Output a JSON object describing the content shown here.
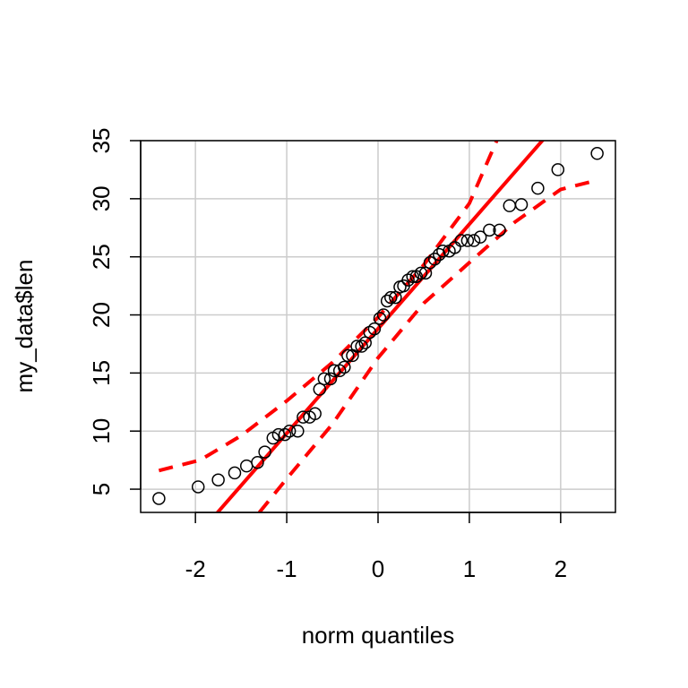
{
  "chart_data": {
    "type": "scatter",
    "title": "",
    "xlabel": "norm quantiles",
    "ylabel": "my_data$len",
    "xlim": [
      -2.6,
      2.6
    ],
    "ylim": [
      3.0,
      35.0
    ],
    "x_ticks": [
      -2,
      -1,
      0,
      1,
      2
    ],
    "x_tick_labels": [
      "-2",
      "-1",
      "0",
      "1",
      "2"
    ],
    "y_ticks": [
      5,
      10,
      15,
      20,
      25,
      30,
      35
    ],
    "y_tick_labels": [
      "5",
      "10",
      "15",
      "20",
      "25",
      "30",
      "35"
    ],
    "grid": true,
    "points": [
      [
        -2.4,
        4.2
      ],
      [
        -1.97,
        5.2
      ],
      [
        -1.75,
        5.8
      ],
      [
        -1.57,
        6.4
      ],
      [
        -1.44,
        7.0
      ],
      [
        -1.32,
        7.3
      ],
      [
        -1.24,
        8.2
      ],
      [
        -1.15,
        9.4
      ],
      [
        -1.09,
        9.7
      ],
      [
        -1.02,
        9.7
      ],
      [
        -0.97,
        10.0
      ],
      [
        -0.88,
        10.0
      ],
      [
        -0.82,
        11.2
      ],
      [
        -0.75,
        11.2
      ],
      [
        -0.69,
        11.5
      ],
      [
        -0.64,
        13.6
      ],
      [
        -0.59,
        14.5
      ],
      [
        -0.52,
        14.5
      ],
      [
        -0.48,
        15.2
      ],
      [
        -0.42,
        15.2
      ],
      [
        -0.37,
        15.5
      ],
      [
        -0.33,
        16.5
      ],
      [
        -0.28,
        16.5
      ],
      [
        -0.23,
        17.3
      ],
      [
        -0.18,
        17.3
      ],
      [
        -0.14,
        17.6
      ],
      [
        -0.09,
        18.5
      ],
      [
        -0.04,
        18.8
      ],
      [
        0.02,
        19.7
      ],
      [
        0.06,
        20.0
      ],
      [
        0.1,
        21.2
      ],
      [
        0.14,
        21.5
      ],
      [
        0.19,
        21.5
      ],
      [
        0.24,
        22.4
      ],
      [
        0.28,
        22.5
      ],
      [
        0.33,
        23.0
      ],
      [
        0.38,
        23.3
      ],
      [
        0.42,
        23.3
      ],
      [
        0.47,
        23.6
      ],
      [
        0.52,
        23.6
      ],
      [
        0.57,
        24.5
      ],
      [
        0.62,
        24.8
      ],
      [
        0.67,
        25.2
      ],
      [
        0.71,
        25.5
      ],
      [
        0.78,
        25.5
      ],
      [
        0.84,
        25.8
      ],
      [
        0.91,
        26.4
      ],
      [
        0.98,
        26.4
      ],
      [
        1.05,
        26.4
      ],
      [
        1.12,
        26.7
      ],
      [
        1.22,
        27.3
      ],
      [
        1.33,
        27.3
      ],
      [
        1.44,
        29.4
      ],
      [
        1.57,
        29.5
      ],
      [
        1.75,
        30.9
      ],
      [
        1.97,
        32.5
      ],
      [
        2.4,
        33.9
      ]
    ],
    "reference_line": {
      "intercept": 18.81,
      "slope": 9.0
    },
    "confidence_band": {
      "upper": [
        [
          -2.4,
          6.6
        ],
        [
          -1.95,
          7.5
        ],
        [
          -1.5,
          9.6
        ],
        [
          -1.0,
          12.6
        ],
        [
          -0.5,
          15.9
        ],
        [
          0.0,
          19.8
        ],
        [
          0.5,
          24.3
        ],
        [
          1.0,
          29.6
        ],
        [
          1.3,
          35.0
        ]
      ],
      "lower": [
        [
          -1.3,
          3.0
        ],
        [
          -1.0,
          5.9
        ],
        [
          -0.5,
          10.6
        ],
        [
          0.0,
          16.3
        ],
        [
          0.5,
          21.0
        ],
        [
          1.0,
          24.5
        ],
        [
          1.5,
          28.0
        ],
        [
          2.0,
          30.8
        ],
        [
          2.4,
          31.6
        ]
      ]
    },
    "colors": {
      "points": "#000000",
      "line": "#ff0000",
      "band": "#ff0000",
      "grid": "#cccccc"
    }
  }
}
